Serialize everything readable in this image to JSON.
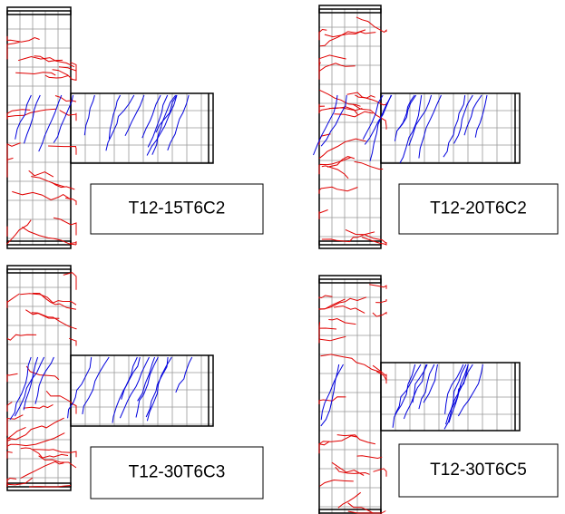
{
  "panels": [
    {
      "label": "T12-15T6C2"
    },
    {
      "label": "T12-20T6C2"
    },
    {
      "label": "T12-30T6C3"
    },
    {
      "label": "T12-30T6C5"
    }
  ]
}
